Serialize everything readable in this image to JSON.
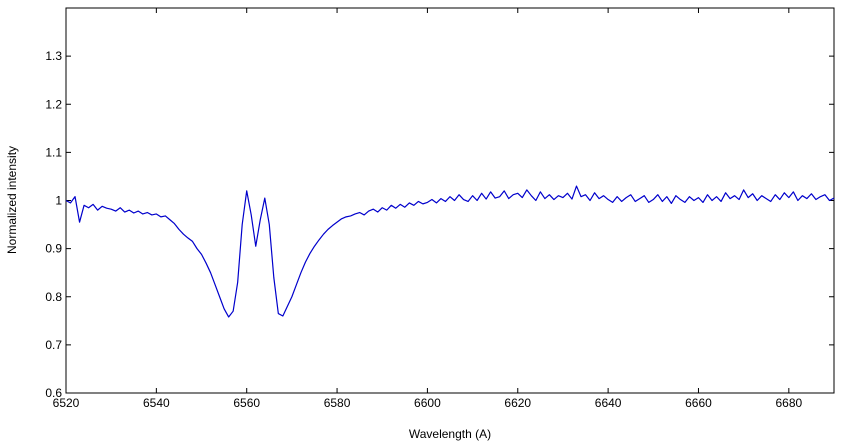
{
  "chart_data": {
    "type": "line",
    "xlabel": "Wavelength (A)",
    "ylabel": "Normalized intensity",
    "color": "#0000cc",
    "xlim": [
      6520,
      6690
    ],
    "ylim": [
      0.6,
      1.4
    ],
    "xticks": [
      6520,
      6540,
      6560,
      6580,
      6600,
      6620,
      6640,
      6660,
      6680
    ],
    "yticks": [
      0.6,
      0.7,
      0.8,
      0.9,
      1,
      1.1,
      1.2,
      1.3
    ],
    "x": [
      6520,
      6521,
      6522,
      6523,
      6524,
      6525,
      6526,
      6527,
      6528,
      6529,
      6530,
      6531,
      6532,
      6533,
      6534,
      6535,
      6536,
      6537,
      6538,
      6539,
      6540,
      6541,
      6542,
      6543,
      6544,
      6545,
      6546,
      6547,
      6548,
      6549,
      6550,
      6551,
      6552,
      6553,
      6554,
      6555,
      6556,
      6557,
      6558,
      6559,
      6560,
      6561,
      6562,
      6563,
      6564,
      6565,
      6566,
      6567,
      6568,
      6569,
      6570,
      6571,
      6572,
      6573,
      6574,
      6575,
      6576,
      6577,
      6578,
      6579,
      6580,
      6581,
      6582,
      6583,
      6584,
      6585,
      6586,
      6587,
      6588,
      6589,
      6590,
      6591,
      6592,
      6593,
      6594,
      6595,
      6596,
      6597,
      6598,
      6599,
      6600,
      6601,
      6602,
      6603,
      6604,
      6605,
      6606,
      6607,
      6608,
      6609,
      6610,
      6611,
      6612,
      6613,
      6614,
      6615,
      6616,
      6617,
      6618,
      6619,
      6620,
      6621,
      6622,
      6623,
      6624,
      6625,
      6626,
      6627,
      6628,
      6629,
      6630,
      6631,
      6632,
      6633,
      6634,
      6635,
      6636,
      6637,
      6638,
      6639,
      6640,
      6641,
      6642,
      6643,
      6644,
      6645,
      6646,
      6647,
      6648,
      6649,
      6650,
      6651,
      6652,
      6653,
      6654,
      6655,
      6656,
      6657,
      6658,
      6659,
      6660,
      6661,
      6662,
      6663,
      6664,
      6665,
      6666,
      6667,
      6668,
      6669,
      6670,
      6671,
      6672,
      6673,
      6674,
      6675,
      6676,
      6677,
      6678,
      6679,
      6680,
      6681,
      6682,
      6683,
      6684,
      6685,
      6686,
      6687,
      6688,
      6689,
      6690
    ],
    "values": [
      1.0,
      0.995,
      1.008,
      0.955,
      0.99,
      0.985,
      0.992,
      0.98,
      0.988,
      0.984,
      0.982,
      0.978,
      0.985,
      0.976,
      0.98,
      0.974,
      0.978,
      0.972,
      0.975,
      0.97,
      0.972,
      0.966,
      0.968,
      0.96,
      0.952,
      0.94,
      0.93,
      0.922,
      0.915,
      0.9,
      0.888,
      0.87,
      0.85,
      0.825,
      0.8,
      0.775,
      0.758,
      0.77,
      0.83,
      0.95,
      1.02,
      0.97,
      0.905,
      0.96,
      1.005,
      0.95,
      0.84,
      0.765,
      0.76,
      0.78,
      0.8,
      0.825,
      0.85,
      0.872,
      0.89,
      0.905,
      0.918,
      0.93,
      0.94,
      0.948,
      0.955,
      0.962,
      0.966,
      0.968,
      0.972,
      0.975,
      0.97,
      0.978,
      0.982,
      0.976,
      0.985,
      0.98,
      0.99,
      0.984,
      0.992,
      0.986,
      0.995,
      0.99,
      0.998,
      0.993,
      0.996,
      1.002,
      0.995,
      1.004,
      0.998,
      1.008,
      1.0,
      1.012,
      1.002,
      0.998,
      1.01,
      1.0,
      1.015,
      1.003,
      1.018,
      1.005,
      1.008,
      1.02,
      1.004,
      1.012,
      1.015,
      1.006,
      1.022,
      1.01,
      1.0,
      1.018,
      1.004,
      1.012,
      1.002,
      1.01,
      1.006,
      1.015,
      1.003,
      1.03,
      1.008,
      1.012,
      1.0,
      1.016,
      1.004,
      1.01,
      1.002,
      0.996,
      1.008,
      0.998,
      1.006,
      1.012,
      0.998,
      1.004,
      1.01,
      0.996,
      1.002,
      1.012,
      0.998,
      1.008,
      0.994,
      1.01,
      1.002,
      0.996,
      1.008,
      1.0,
      1.006,
      0.996,
      1.012,
      1.0,
      1.008,
      0.998,
      1.016,
      1.004,
      1.01,
      1.002,
      1.022,
      1.006,
      1.014,
      1.0,
      1.01,
      1.004,
      0.998,
      1.012,
      1.002,
      1.016,
      1.006,
      1.018,
      1.0,
      1.01,
      1.004,
      1.014,
      1.002,
      1.008,
      1.012,
      1.0,
      1.005
    ]
  }
}
